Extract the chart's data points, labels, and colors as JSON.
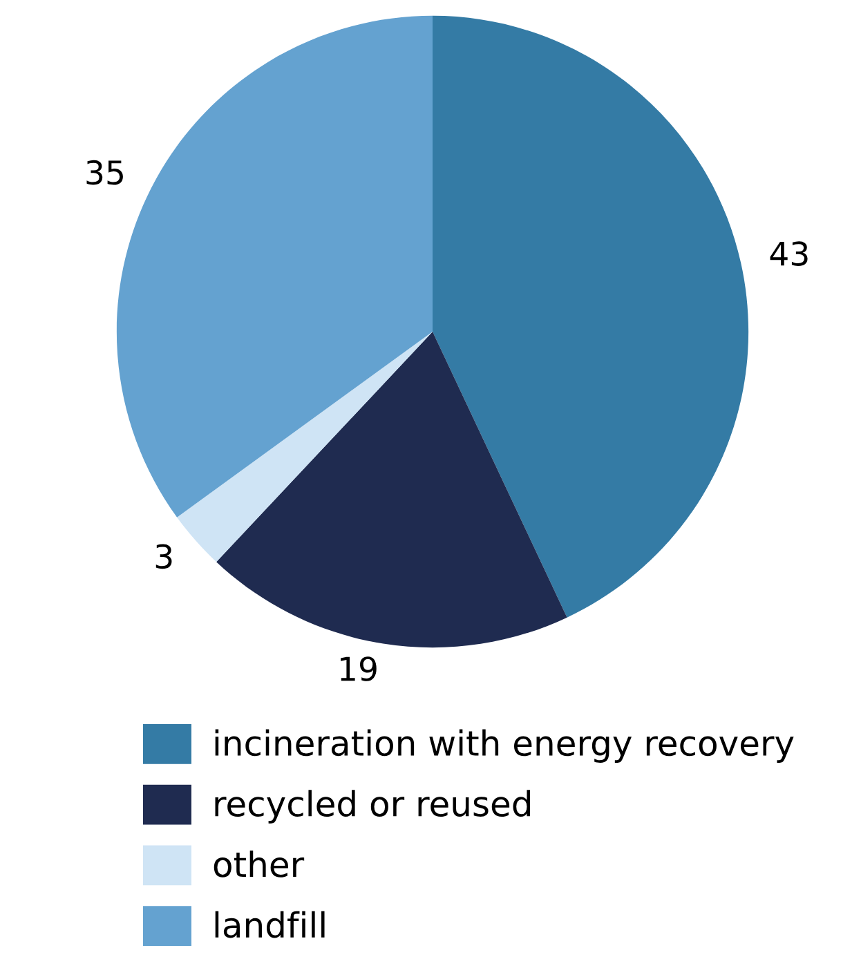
{
  "chart_data": {
    "type": "pie",
    "categories": [
      "incineration with energy recovery",
      "recycled or reused",
      "other",
      "landfill"
    ],
    "values": [
      43,
      19,
      3,
      35
    ],
    "colors": [
      "#347ba5",
      "#1f2b50",
      "#cfe4f5",
      "#64a2d0"
    ],
    "data_labels": true,
    "legend": "bottom"
  }
}
